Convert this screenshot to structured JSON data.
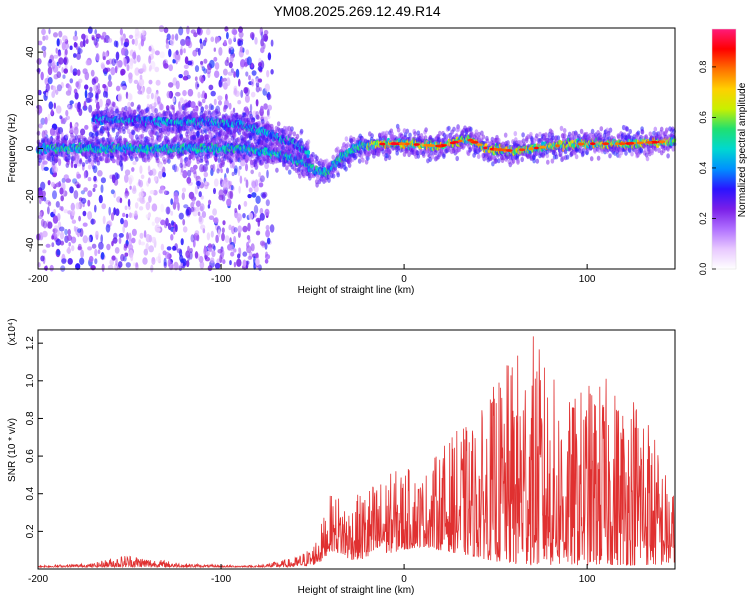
{
  "title": "YM08.2025.269.12.49.R14",
  "chart_data": [
    {
      "type": "heatmap",
      "name": "spectrogram",
      "xlabel": "Height of straight line (km)",
      "ylabel": "Frequency (Hz)",
      "xlim": [
        -200,
        148
      ],
      "ylim": [
        -50,
        50
      ],
      "xticks": [
        -200,
        -100,
        0,
        100
      ],
      "yticks": [
        -40,
        -20,
        0,
        20,
        40
      ],
      "colorbar": {
        "label": "Normalized spectral amplitude",
        "range": [
          0,
          0.95
        ],
        "ticks": [
          "0.0",
          "0.2",
          "0.4",
          "0.6",
          "0.8"
        ],
        "colormap": [
          "#ffffff",
          "#e8c8ff",
          "#b070ff",
          "#7a1fe8",
          "#2a14ff",
          "#0090ff",
          "#00d8d0",
          "#20e070",
          "#c8f000",
          "#ffd000",
          "#ff7000",
          "#ff0000",
          "#ff1a7a"
        ]
      },
      "ridges": [
        {
          "x": [
            -200,
            -170,
            -150,
            -120,
            -90,
            -70,
            -58,
            -48,
            -42,
            -35,
            -25,
            -10,
            0,
            20,
            30,
            35,
            45,
            60,
            80,
            100,
            120,
            148
          ],
          "freq": [
            0,
            0,
            0,
            0,
            0,
            -2,
            -5,
            -9,
            -10,
            -4,
            1,
            2,
            2,
            1,
            3,
            4,
            0,
            -1,
            1,
            2,
            2,
            3
          ]
        },
        {
          "x": [
            -170,
            -150,
            -130,
            -110,
            -90,
            -80,
            -70,
            -60,
            -52
          ],
          "freq": [
            12,
            12,
            11,
            11,
            10,
            8,
            5,
            2,
            -2
          ]
        }
      ],
      "noise_region": {
        "x": [
          -200,
          -72
        ],
        "freq": [
          -50,
          50
        ]
      }
    },
    {
      "type": "line",
      "name": "snr",
      "xlabel": "Height of straight line (km)",
      "ylabel": "SNR (10 * v/v)",
      "yunit": "(x10⁴)",
      "xlim": [
        -200,
        148
      ],
      "ylim": [
        0,
        1.27
      ],
      "xticks": [
        -200,
        -100,
        0,
        100
      ],
      "yticks": [
        0.2,
        0.4,
        0.6,
        0.8,
        1.0,
        1.2
      ],
      "color": "#e03030",
      "envelope": {
        "x": [
          -200,
          -170,
          -160,
          -150,
          -140,
          -120,
          -100,
          -80,
          -60,
          -50,
          -45,
          -40,
          -35,
          -30,
          -20,
          -10,
          0,
          10,
          20,
          30,
          40,
          50,
          60,
          70,
          80,
          90,
          100,
          110,
          120,
          130,
          140,
          148
        ],
        "floor": [
          0.01,
          0.01,
          0.01,
          0.01,
          0.01,
          0.01,
          0.01,
          0.01,
          0.01,
          0.02,
          0.04,
          0.1,
          0.08,
          0.05,
          0.05,
          0.08,
          0.1,
          0.12,
          0.1,
          0.08,
          0.06,
          0.04,
          0.02,
          0.02,
          0.02,
          0.02,
          0.02,
          0.02,
          0.02,
          0.02,
          0.02,
          0.02
        ],
        "peak": [
          0.02,
          0.03,
          0.06,
          0.08,
          0.06,
          0.03,
          0.02,
          0.02,
          0.06,
          0.12,
          0.25,
          0.4,
          0.4,
          0.35,
          0.45,
          0.5,
          0.55,
          0.5,
          0.65,
          0.75,
          0.8,
          1.0,
          1.15,
          1.27,
          1.05,
          0.9,
          1.0,
          1.02,
          0.95,
          1.0,
          0.6,
          0.4
        ]
      }
    }
  ]
}
